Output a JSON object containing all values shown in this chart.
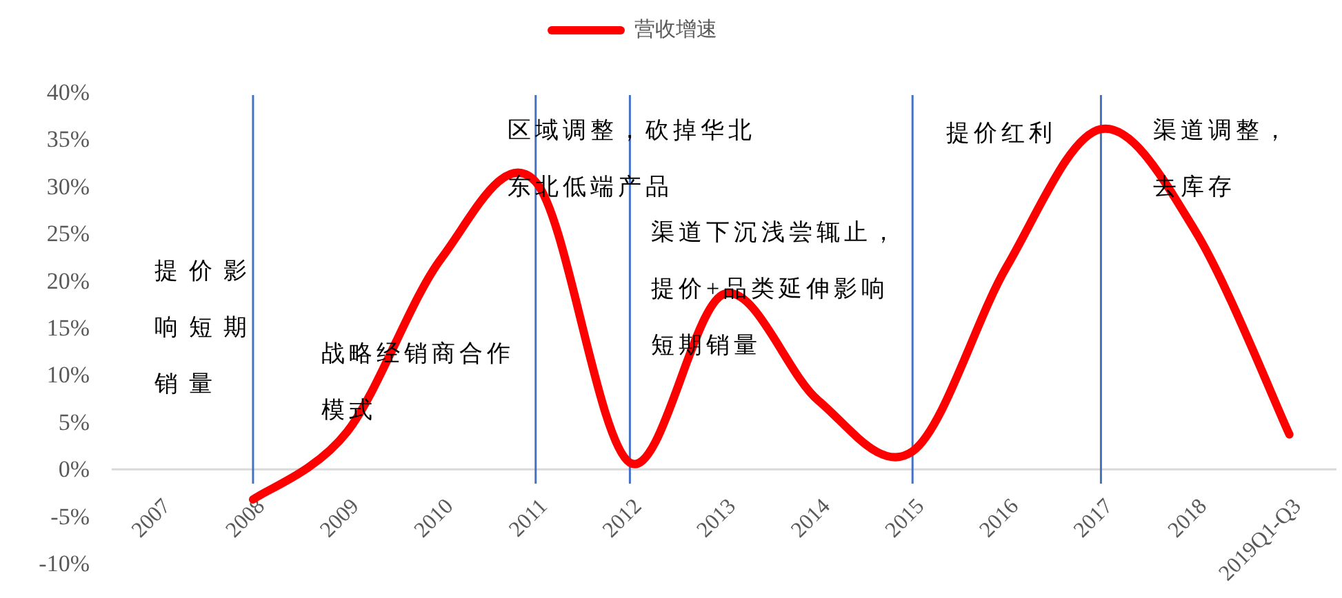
{
  "chart_data": {
    "type": "line",
    "categories": [
      "2007",
      "2008",
      "2009",
      "2010",
      "2011",
      "2012",
      "2013",
      "2014",
      "2015",
      "2016",
      "2017",
      "2018",
      "2019Q1-Q3"
    ],
    "series": [
      {
        "name": "营收增速",
        "color": "#ff0000",
        "values": [
          null,
          -3.2,
          4,
          22.4,
          30.5,
          0.7,
          18.6,
          7.3,
          1.9,
          21.5,
          36.1,
          25.3,
          3.7
        ]
      }
    ],
    "ylim": [
      -10,
      40
    ],
    "yticks": [
      {
        "value": -10,
        "label": "-10%"
      },
      {
        "value": -5,
        "label": "-5%"
      },
      {
        "value": 0,
        "label": "0%"
      },
      {
        "value": 5,
        "label": "5%"
      },
      {
        "value": 10,
        "label": "10%"
      },
      {
        "value": 15,
        "label": "15%"
      },
      {
        "value": 20,
        "label": "20%"
      },
      {
        "value": 25,
        "label": "25%"
      },
      {
        "value": 30,
        "label": "30%"
      },
      {
        "value": 35,
        "label": "35%"
      },
      {
        "value": 40,
        "label": "40%"
      }
    ],
    "ref_lines": [
      {
        "axis": "x",
        "value": "2008",
        "color": "#4472c4"
      },
      {
        "axis": "x",
        "value": "2011",
        "color": "#4472c4"
      },
      {
        "axis": "x",
        "value": "2012",
        "color": "#4472c4"
      },
      {
        "axis": "x",
        "value": "2015",
        "color": "#4472c4"
      },
      {
        "axis": "x",
        "value": "2017",
        "color": "#4472c4"
      }
    ],
    "annotations": [
      "提价影响短期销量",
      "战略经销商合作模式",
      "区域调整，砍掉华北东北低端产品",
      "渠道下沉浅尝辄止，提价+品类延伸影响短期销量",
      "提价红利",
      "渠道调整，去库存"
    ],
    "legend": "top",
    "grid": false,
    "marker": "none",
    "line_style": "solid"
  }
}
